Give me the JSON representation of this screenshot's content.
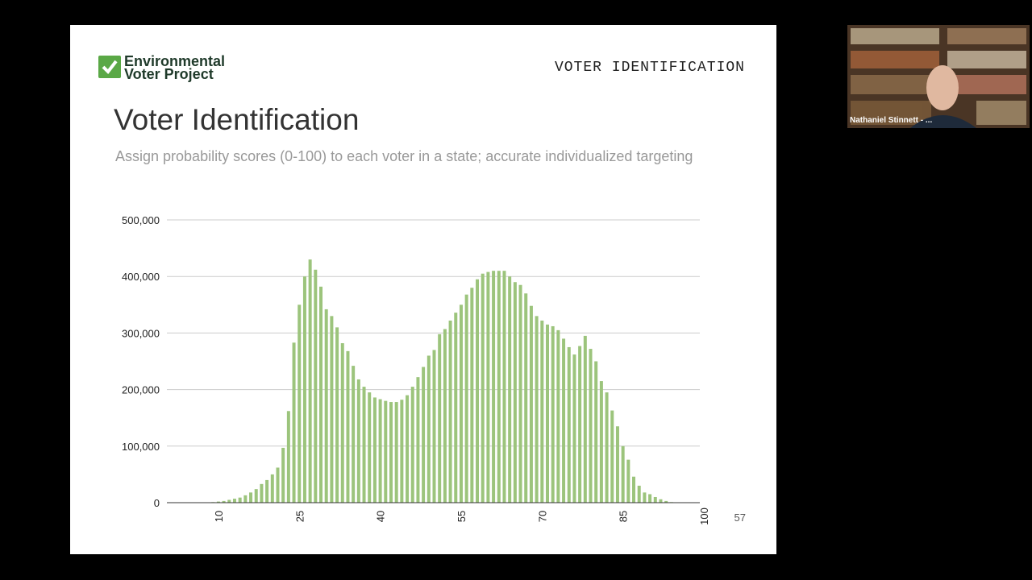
{
  "slide": {
    "logo": [
      "Environmental",
      "Voter Project"
    ],
    "header": "VOTER IDENTIFICATION",
    "title": "Voter Identification",
    "subtitle": "Assign probability scores (0-100) to each voter in a state; accurate individualized targeting",
    "page_number": "57"
  },
  "participant": {
    "name": "Nathaniel Stinnett - ..."
  },
  "chart_data": {
    "type": "bar",
    "color": "#9cc47c",
    "grid": true,
    "x": [
      9,
      10,
      11,
      12,
      13,
      14,
      15,
      16,
      17,
      18,
      19,
      20,
      21,
      22,
      23,
      24,
      25,
      26,
      27,
      28,
      29,
      30,
      31,
      32,
      33,
      34,
      35,
      36,
      37,
      38,
      39,
      40,
      41,
      42,
      43,
      44,
      45,
      46,
      47,
      48,
      49,
      50,
      51,
      52,
      53,
      54,
      55,
      56,
      57,
      58,
      59,
      60,
      61,
      62,
      63,
      64,
      65,
      66,
      67,
      68,
      69,
      70,
      71,
      72,
      73,
      74,
      75,
      76,
      77,
      78,
      79,
      80,
      81,
      82,
      83,
      84,
      85,
      86,
      87,
      88,
      89,
      90,
      91,
      92,
      93,
      94
    ],
    "values": [
      1000,
      2000,
      3000,
      5000,
      7000,
      9000,
      13000,
      18000,
      24000,
      33000,
      40000,
      50000,
      62000,
      97000,
      162000,
      283000,
      350000,
      400000,
      430000,
      412000,
      382000,
      342000,
      330000,
      310000,
      282000,
      268000,
      242000,
      218000,
      205000,
      195000,
      186000,
      183000,
      180000,
      178000,
      178000,
      182000,
      190000,
      205000,
      222000,
      240000,
      260000,
      270000,
      298000,
      307000,
      322000,
      336000,
      350000,
      368000,
      380000,
      395000,
      405000,
      408000,
      410000,
      410000,
      410000,
      400000,
      390000,
      385000,
      370000,
      348000,
      330000,
      322000,
      315000,
      312000,
      305000,
      290000,
      275000,
      262000,
      277000,
      295000,
      272000,
      250000,
      215000,
      195000,
      163000,
      135000,
      100000,
      76000,
      46000,
      30000,
      18000,
      15000,
      10000,
      6000,
      3000,
      1000
    ],
    "xlim": [
      0,
      100
    ],
    "xticks": [
      10,
      25,
      40,
      55,
      70,
      85,
      100
    ],
    "ylim": [
      0,
      500000
    ],
    "yticks": [
      0,
      {
        "value": 100000,
        "label": "100,000"
      },
      {
        "value": 200000,
        "label": "200,000"
      },
      {
        "value": 300000,
        "label": "300,000"
      },
      {
        "value": 400000,
        "label": "400,000"
      },
      {
        "value": 500000,
        "label": "500,000"
      }
    ]
  }
}
